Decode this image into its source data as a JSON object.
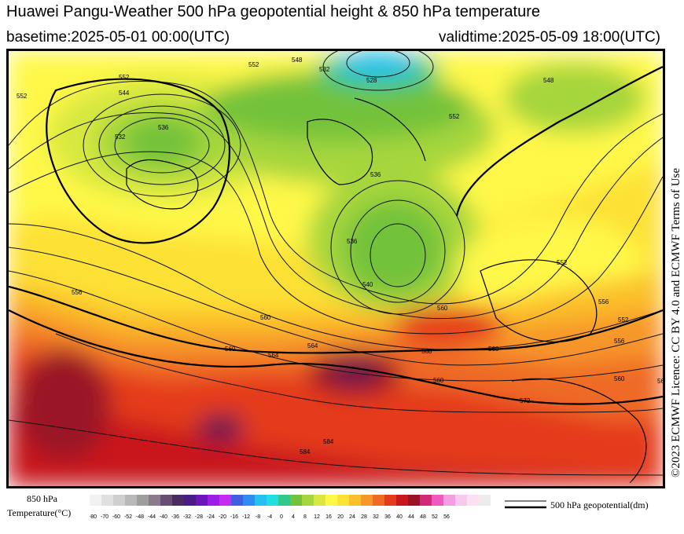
{
  "header": {
    "title": "Huawei Pangu-Weather 500 hPa geopotential height & 850 hPa temperature",
    "basetime": "basetime:2025-05-01 00:00(UTC)",
    "validtime": "validtime:2025-05-09 18:00(UTC)"
  },
  "license": "©2023 ECMWF Licence: CC BY 4.0 and ECMWF Terms of Use",
  "colorbar": {
    "title_line1": "850 hPa",
    "title_line2": "Temperature(°C)",
    "ticks": [
      "-80",
      "-70",
      "-60",
      "-52",
      "-48",
      "-44",
      "-40",
      "-36",
      "-32",
      "-28",
      "-24",
      "-20",
      "-16",
      "-12",
      "-8",
      "-4",
      "0",
      "4",
      "8",
      "12",
      "16",
      "20",
      "24",
      "28",
      "32",
      "36",
      "40",
      "44",
      "48",
      "52",
      "56"
    ],
    "colors": [
      "#f2f2f2",
      "#e0e0e0",
      "#cfcfcf",
      "#b9b9b9",
      "#9e9e9e",
      "#8c7a8c",
      "#6a4d72",
      "#4b2c61",
      "#4a1d86",
      "#6b16b9",
      "#9c1ee6",
      "#c52bf0",
      "#3f5fe0",
      "#2f8cf0",
      "#27c0f0",
      "#21dfe0",
      "#30c98a",
      "#73c23b",
      "#a6d63d",
      "#d8e840",
      "#fff84a",
      "#fde134",
      "#fbbf2b",
      "#f7962b",
      "#ef6a25",
      "#e43b1e",
      "#c8181e",
      "#9a1428",
      "#d22a7b",
      "#ef59c0",
      "#f49de1",
      "#f8c8ee",
      "#fbe0f4",
      "#ececec"
    ]
  },
  "legend": {
    "label": "500 hPa geopotential(dm)"
  },
  "map": {
    "contour_labels": [
      "552",
      "552",
      "548",
      "532",
      "528",
      "536",
      "552",
      "560",
      "560",
      "556",
      "552",
      "548",
      "532",
      "536",
      "536",
      "540",
      "544",
      "552",
      "556",
      "560",
      "564",
      "568",
      "560",
      "556",
      "552",
      "560",
      "560",
      "564",
      "568",
      "572",
      "584",
      "584"
    ]
  }
}
